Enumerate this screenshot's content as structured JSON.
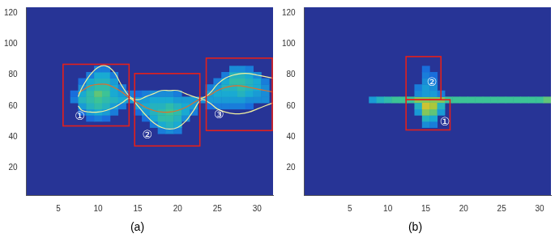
{
  "chart_data": [
    {
      "type": "heatmap",
      "title": "(a)",
      "grid": false,
      "xlim": [
        1,
        32
      ],
      "xticks": [
        5,
        10,
        15,
        20,
        25,
        30
      ],
      "ylim": [
        2,
        124
      ],
      "yticks": [
        20,
        40,
        60,
        80,
        100,
        120
      ],
      "zlim": [
        0,
        1
      ],
      "cells": [
        [
          7,
          64,
          0.35
        ],
        [
          7,
          68,
          0.3
        ],
        [
          8,
          56,
          0.3
        ],
        [
          8,
          60,
          0.45
        ],
        [
          8,
          64,
          0.55
        ],
        [
          8,
          68,
          0.5
        ],
        [
          8,
          72,
          0.4
        ],
        [
          8,
          76,
          0.3
        ],
        [
          9,
          52,
          0.3
        ],
        [
          9,
          56,
          0.45
        ],
        [
          9,
          60,
          0.55
        ],
        [
          9,
          64,
          0.6
        ],
        [
          9,
          68,
          0.6
        ],
        [
          9,
          72,
          0.55
        ],
        [
          9,
          76,
          0.5
        ],
        [
          9,
          80,
          0.35
        ],
        [
          10,
          52,
          0.35
        ],
        [
          10,
          56,
          0.5
        ],
        [
          10,
          60,
          0.6
        ],
        [
          10,
          64,
          0.65
        ],
        [
          10,
          68,
          0.7
        ],
        [
          10,
          72,
          0.6
        ],
        [
          10,
          76,
          0.55
        ],
        [
          10,
          80,
          0.5
        ],
        [
          10,
          84,
          0.35
        ],
        [
          11,
          52,
          0.3
        ],
        [
          11,
          56,
          0.45
        ],
        [
          11,
          60,
          0.55
        ],
        [
          11,
          64,
          0.6
        ],
        [
          11,
          68,
          0.65
        ],
        [
          11,
          72,
          0.6
        ],
        [
          11,
          76,
          0.55
        ],
        [
          11,
          80,
          0.5
        ],
        [
          11,
          84,
          0.35
        ],
        [
          12,
          56,
          0.35
        ],
        [
          12,
          60,
          0.45
        ],
        [
          12,
          64,
          0.55
        ],
        [
          12,
          68,
          0.5
        ],
        [
          12,
          72,
          0.5
        ],
        [
          12,
          76,
          0.45
        ],
        [
          12,
          80,
          0.35
        ],
        [
          13,
          60,
          0.35
        ],
        [
          13,
          64,
          0.5
        ],
        [
          13,
          68,
          0.45
        ],
        [
          13,
          72,
          0.35
        ],
        [
          14,
          64,
          0.45
        ],
        [
          14,
          68,
          0.35
        ],
        [
          15,
          56,
          0.3
        ],
        [
          15,
          60,
          0.45
        ],
        [
          15,
          64,
          0.45
        ],
        [
          15,
          68,
          0.3
        ],
        [
          16,
          52,
          0.3
        ],
        [
          16,
          56,
          0.45
        ],
        [
          16,
          60,
          0.5
        ],
        [
          16,
          64,
          0.45
        ],
        [
          16,
          68,
          0.35
        ],
        [
          17,
          48,
          0.35
        ],
        [
          17,
          52,
          0.5
        ],
        [
          17,
          56,
          0.55
        ],
        [
          17,
          60,
          0.55
        ],
        [
          17,
          64,
          0.5
        ],
        [
          17,
          68,
          0.4
        ],
        [
          18,
          44,
          0.35
        ],
        [
          18,
          48,
          0.5
        ],
        [
          18,
          52,
          0.6
        ],
        [
          18,
          56,
          0.6
        ],
        [
          18,
          60,
          0.55
        ],
        [
          18,
          64,
          0.5
        ],
        [
          18,
          68,
          0.4
        ],
        [
          19,
          44,
          0.4
        ],
        [
          19,
          48,
          0.55
        ],
        [
          19,
          52,
          0.6
        ],
        [
          19,
          56,
          0.65
        ],
        [
          19,
          60,
          0.6
        ],
        [
          19,
          64,
          0.5
        ],
        [
          19,
          68,
          0.4
        ],
        [
          20,
          44,
          0.35
        ],
        [
          20,
          48,
          0.5
        ],
        [
          20,
          52,
          0.55
        ],
        [
          20,
          56,
          0.6
        ],
        [
          20,
          60,
          0.55
        ],
        [
          20,
          64,
          0.45
        ],
        [
          20,
          68,
          0.35
        ],
        [
          21,
          52,
          0.4
        ],
        [
          21,
          56,
          0.5
        ],
        [
          21,
          60,
          0.5
        ],
        [
          21,
          64,
          0.45
        ],
        [
          22,
          56,
          0.35
        ],
        [
          22,
          60,
          0.45
        ],
        [
          22,
          64,
          0.45
        ],
        [
          23,
          64,
          0.4
        ],
        [
          24,
          60,
          0.3
        ],
        [
          24,
          64,
          0.45
        ],
        [
          24,
          68,
          0.45
        ],
        [
          24,
          72,
          0.35
        ],
        [
          25,
          60,
          0.35
        ],
        [
          25,
          64,
          0.45
        ],
        [
          25,
          68,
          0.5
        ],
        [
          25,
          72,
          0.45
        ],
        [
          25,
          76,
          0.35
        ],
        [
          26,
          60,
          0.35
        ],
        [
          26,
          64,
          0.45
        ],
        [
          26,
          68,
          0.5
        ],
        [
          26,
          72,
          0.55
        ],
        [
          26,
          76,
          0.5
        ],
        [
          26,
          80,
          0.35
        ],
        [
          27,
          60,
          0.35
        ],
        [
          27,
          64,
          0.45
        ],
        [
          27,
          68,
          0.5
        ],
        [
          27,
          72,
          0.55
        ],
        [
          27,
          76,
          0.6
        ],
        [
          27,
          80,
          0.55
        ],
        [
          27,
          84,
          0.4
        ],
        [
          28,
          60,
          0.35
        ],
        [
          28,
          64,
          0.45
        ],
        [
          28,
          68,
          0.55
        ],
        [
          28,
          72,
          0.6
        ],
        [
          28,
          76,
          0.6
        ],
        [
          28,
          80,
          0.55
        ],
        [
          28,
          84,
          0.4
        ],
        [
          29,
          60,
          0.3
        ],
        [
          29,
          64,
          0.4
        ],
        [
          29,
          68,
          0.5
        ],
        [
          29,
          72,
          0.55
        ],
        [
          29,
          76,
          0.55
        ],
        [
          29,
          80,
          0.5
        ],
        [
          29,
          84,
          0.35
        ],
        [
          30,
          64,
          0.4
        ],
        [
          30,
          68,
          0.45
        ],
        [
          30,
          72,
          0.5
        ],
        [
          30,
          76,
          0.5
        ],
        [
          30,
          80,
          0.4
        ],
        [
          31,
          64,
          0.4
        ],
        [
          31,
          68,
          0.4
        ],
        [
          31,
          72,
          0.4
        ],
        [
          31,
          76,
          0.35
        ]
      ],
      "x": [
        7.5,
        8,
        9,
        10,
        11,
        12,
        13,
        14,
        15,
        16,
        17,
        18,
        19,
        20,
        21,
        22,
        23,
        24,
        25,
        26,
        27,
        28,
        29,
        30,
        31,
        32
      ],
      "series": [
        {
          "type": "line",
          "color": "#f4f2a0",
          "values": [
            66,
            72,
            80,
            85,
            86,
            82,
            73,
            66,
            64,
            66,
            68,
            70,
            70,
            70,
            68,
            66,
            65,
            68,
            74,
            78,
            80,
            81,
            81,
            80,
            79,
            78
          ]
        },
        {
          "type": "line",
          "color": "#f4f2a0",
          "values": [
            60,
            57,
            56,
            56,
            57,
            59,
            62,
            65,
            60,
            54,
            49,
            46,
            45,
            46,
            50,
            57,
            64,
            62,
            58,
            56,
            55,
            55,
            56,
            58,
            60,
            62
          ]
        },
        {
          "type": "line",
          "color": "#e0702a",
          "values": [
            68,
            70,
            73,
            74,
            74,
            72,
            69,
            65,
            62,
            59,
            57,
            56,
            56,
            57,
            59,
            62,
            65,
            67,
            70,
            72,
            73,
            73,
            72,
            71,
            70,
            69
          ]
        }
      ],
      "annotations": [
        {
          "text": "①",
          "color": "#e3201b",
          "x": [
            5.6,
            13.9
          ],
          "y": [
            47,
            87
          ],
          "text_x": 7.7,
          "text_y": 53
        },
        {
          "text": "②",
          "color": "#e3201b",
          "x": [
            14.6,
            22.8
          ],
          "y": [
            34,
            81
          ],
          "text_x": 16.2,
          "text_y": 41
        },
        {
          "text": "③",
          "color": "#e3201b",
          "x": [
            23.6,
            31.9
          ],
          "y": [
            44,
            91
          ],
          "text_x": 25.2,
          "text_y": 54
        }
      ]
    },
    {
      "type": "heatmap",
      "title": "(b)",
      "grid": false,
      "xlim": [
        -1,
        31.5
      ],
      "xticks": [
        5,
        10,
        15,
        20,
        25,
        30
      ],
      "ylim": [
        2,
        124
      ],
      "yticks": [
        20,
        40,
        60,
        80,
        100,
        120
      ],
      "zlim": [
        0,
        1
      ],
      "cells": [
        [
          8,
          64,
          0.45
        ],
        [
          9,
          64,
          0.55
        ],
        [
          10,
          64,
          0.6
        ],
        [
          11,
          64,
          0.65
        ],
        [
          12,
          64,
          0.65
        ],
        [
          13,
          64,
          0.65
        ],
        [
          14,
          64,
          0.75
        ],
        [
          15,
          64,
          0.75
        ],
        [
          16,
          64,
          0.75
        ],
        [
          17,
          64,
          0.75
        ],
        [
          18,
          64,
          0.65
        ],
        [
          19,
          64,
          0.65
        ],
        [
          20,
          64,
          0.65
        ],
        [
          21,
          64,
          0.65
        ],
        [
          22,
          64,
          0.65
        ],
        [
          23,
          64,
          0.65
        ],
        [
          24,
          64,
          0.65
        ],
        [
          25,
          64,
          0.65
        ],
        [
          26,
          64,
          0.65
        ],
        [
          27,
          64,
          0.65
        ],
        [
          28,
          64,
          0.65
        ],
        [
          29,
          64,
          0.65
        ],
        [
          30,
          64,
          0.65
        ],
        [
          31,
          64,
          0.7
        ],
        [
          14,
          56,
          0.45
        ],
        [
          14,
          60,
          0.55
        ],
        [
          15,
          48,
          0.4
        ],
        [
          15,
          52,
          0.55
        ],
        [
          15,
          56,
          0.75
        ],
        [
          15,
          60,
          0.85
        ],
        [
          16,
          48,
          0.35
        ],
        [
          16,
          52,
          0.5
        ],
        [
          16,
          56,
          0.7
        ],
        [
          16,
          60,
          0.8
        ],
        [
          17,
          56,
          0.45
        ],
        [
          17,
          60,
          0.55
        ],
        [
          14,
          68,
          0.4
        ],
        [
          14,
          72,
          0.35
        ],
        [
          15,
          68,
          0.45
        ],
        [
          15,
          72,
          0.45
        ],
        [
          15,
          76,
          0.4
        ],
        [
          15,
          80,
          0.35
        ],
        [
          15,
          84,
          0.3
        ],
        [
          16,
          68,
          0.45
        ],
        [
          16,
          72,
          0.4
        ],
        [
          16,
          76,
          0.35
        ],
        [
          16,
          80,
          0.3
        ],
        [
          17,
          68,
          0.35
        ]
      ],
      "annotations": [
        {
          "text": "②",
          "color": "#e3201b",
          "x": [
            12.4,
            17
          ],
          "y": [
            64,
            92
          ],
          "text_x": 15.8,
          "text_y": 75
        },
        {
          "text": "①",
          "color": "#e3201b",
          "x": [
            12.4,
            18.2
          ],
          "y": [
            44.4,
            64
          ],
          "text_x": 17.5,
          "text_y": 49.3
        }
      ]
    }
  ]
}
